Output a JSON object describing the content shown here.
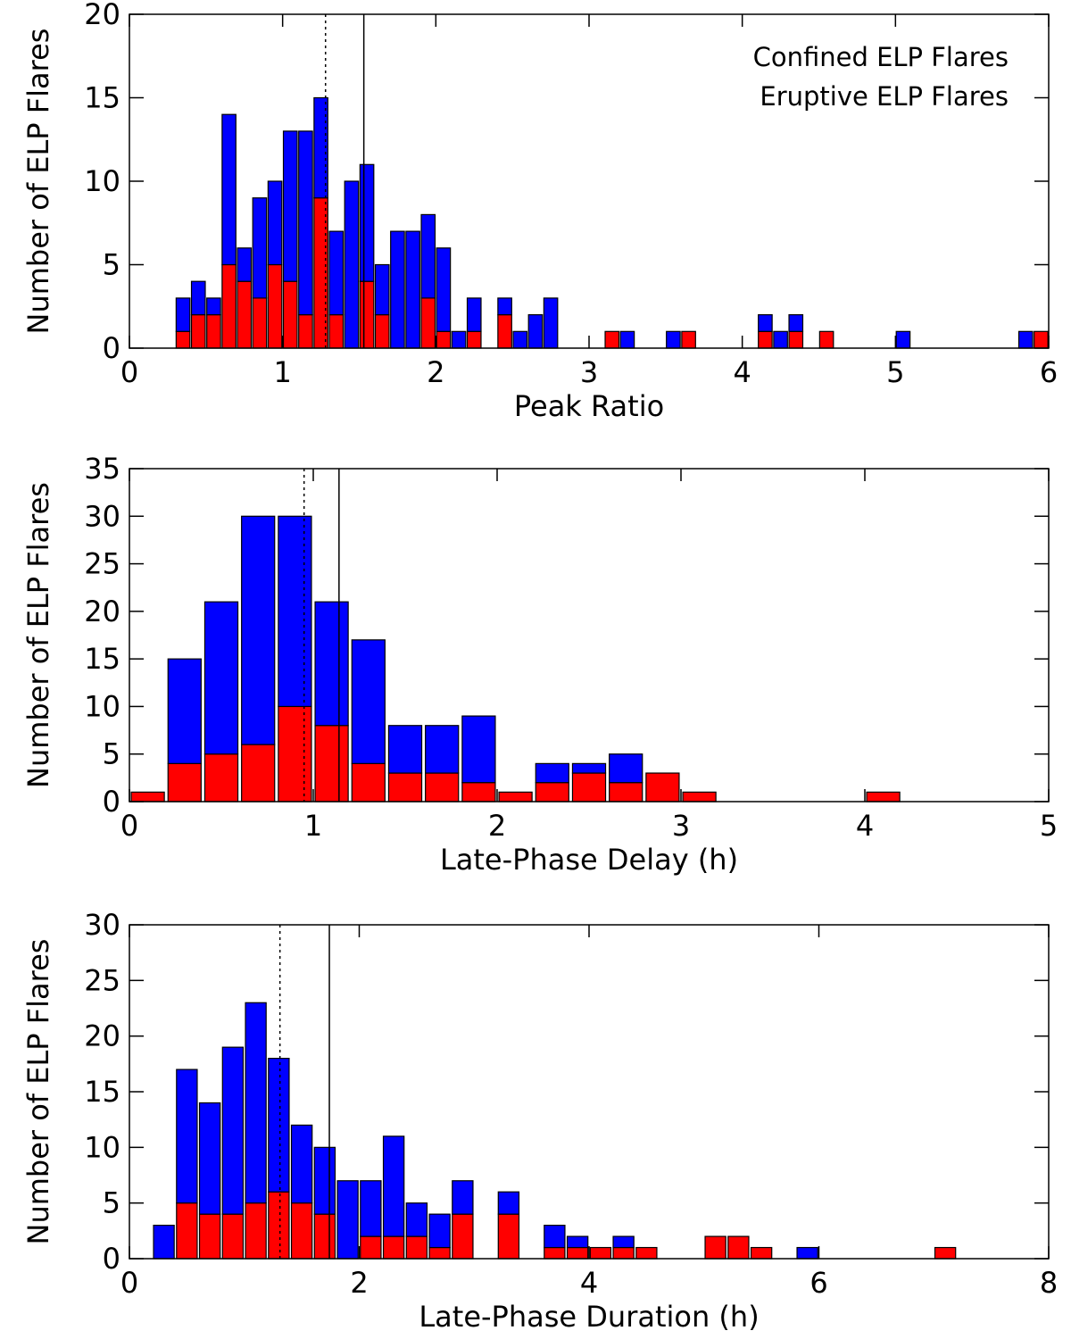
{
  "chart_data": [
    {
      "type": "histogram",
      "xlabel": "Peak Ratio",
      "ylabel": "Number of ELP Flares",
      "bins": [
        0.3,
        0.4,
        0.5,
        0.6,
        0.7,
        0.8,
        0.9,
        1.0,
        1.1,
        1.2,
        1.3,
        1.4,
        1.5,
        1.6,
        1.7,
        1.8,
        1.9,
        2.0,
        2.1,
        2.2,
        2.3,
        2.4,
        2.5,
        2.6,
        2.7,
        2.8,
        2.9,
        3.0,
        3.1,
        3.2,
        3.3,
        3.4,
        3.5,
        3.6,
        3.7,
        3.8,
        3.9,
        4.0,
        4.1,
        4.2,
        4.3,
        4.4,
        4.5,
        4.6,
        4.7,
        4.8,
        4.9,
        5.0,
        5.1,
        5.2,
        5.3,
        5.4,
        5.5,
        5.6,
        5.7,
        5.8,
        5.9,
        6.0
      ],
      "series": [
        {
          "name": "Confined ELP Flares",
          "color": "#0000ff",
          "values": [
            2,
            2,
            1,
            9,
            2,
            6,
            5,
            9,
            11,
            6,
            5,
            10,
            7,
            3,
            7,
            7,
            5,
            5,
            1,
            2,
            0,
            1,
            1,
            2,
            3,
            0,
            0,
            0,
            0,
            1,
            0,
            0,
            1,
            0,
            0,
            0,
            0,
            0,
            1,
            1,
            1,
            0,
            0,
            0,
            0,
            0,
            0,
            1,
            0,
            0,
            0,
            0,
            0,
            0,
            0,
            1,
            0
          ]
        },
        {
          "name": "Eruptive ELP Flares",
          "color": "#ff0000",
          "values": [
            1,
            2,
            2,
            5,
            4,
            3,
            5,
            4,
            2,
            9,
            2,
            0,
            4,
            2,
            0,
            0,
            3,
            1,
            0,
            1,
            0,
            2,
            0,
            0,
            0,
            0,
            0,
            0,
            1,
            0,
            0,
            0,
            0,
            1,
            0,
            0,
            0,
            0,
            1,
            0,
            1,
            0,
            1,
            0,
            0,
            0,
            0,
            0,
            0,
            0,
            0,
            0,
            0,
            0,
            0,
            0,
            1
          ]
        }
      ],
      "xlim": [
        0,
        6
      ],
      "xticks": [
        0,
        1,
        2,
        3,
        4,
        5,
        6
      ],
      "ylim": [
        0,
        20
      ],
      "yticks": [
        0,
        5,
        10,
        15,
        20
      ],
      "vlines": [
        {
          "x": 1.28,
          "style": "dotted"
        },
        {
          "x": 1.53,
          "style": "solid"
        }
      ],
      "legend": "upper right"
    },
    {
      "type": "histogram",
      "xlabel": "Late-Phase Delay (h)",
      "ylabel": "Number of ELP Flares",
      "bins": [
        0,
        0.2,
        0.4,
        0.6,
        0.8,
        1.0,
        1.2,
        1.4,
        1.6,
        1.8,
        2.0,
        2.2,
        2.4,
        2.6,
        2.8,
        3.0,
        3.2,
        3.4,
        3.6,
        3.8,
        4.0,
        4.2
      ],
      "series": [
        {
          "color": "#0000ff",
          "values": [
            0,
            11,
            16,
            24,
            20,
            13,
            13,
            5,
            5,
            7,
            0,
            2,
            1,
            3,
            0,
            0,
            0,
            0,
            0,
            0,
            0
          ]
        },
        {
          "color": "#ff0000",
          "values": [
            1,
            4,
            5,
            6,
            10,
            8,
            4,
            3,
            3,
            2,
            1,
            2,
            3,
            2,
            3,
            1,
            0,
            0,
            0,
            0,
            1
          ]
        }
      ],
      "xlim": [
        0,
        5
      ],
      "xticks": [
        0,
        1,
        2,
        3,
        4,
        5
      ],
      "ylim": [
        0,
        35
      ],
      "yticks": [
        0,
        5,
        10,
        15,
        20,
        25,
        30,
        35
      ],
      "vlines": [
        {
          "x": 0.95,
          "style": "dotted"
        },
        {
          "x": 1.14,
          "style": "solid"
        }
      ]
    },
    {
      "type": "histogram",
      "xlabel": "Late-Phase Duration (h)",
      "ylabel": "Number of ELP Flares",
      "bins": [
        0.2,
        0.4,
        0.6,
        0.8,
        1.0,
        1.2,
        1.4,
        1.6,
        1.8,
        2.0,
        2.2,
        2.4,
        2.6,
        2.8,
        3.0,
        3.2,
        3.4,
        3.6,
        3.8,
        4.0,
        4.2,
        4.4,
        4.6,
        4.8,
        5.0,
        5.2,
        5.4,
        5.6,
        5.8,
        6.0,
        6.2,
        6.4,
        6.6,
        6.8,
        7.0,
        7.2
      ],
      "series": [
        {
          "color": "#0000ff",
          "values": [
            3,
            12,
            10,
            15,
            18,
            12,
            7,
            6,
            7,
            5,
            9,
            3,
            3,
            3,
            0,
            2,
            0,
            2,
            1,
            0,
            1,
            0,
            0,
            0,
            0,
            0,
            0,
            0,
            1,
            0,
            0,
            0,
            0,
            0,
            0
          ]
        },
        {
          "color": "#ff0000",
          "values": [
            0,
            5,
            4,
            4,
            5,
            6,
            5,
            4,
            0,
            2,
            2,
            2,
            1,
            4,
            0,
            4,
            0,
            1,
            1,
            1,
            1,
            1,
            0,
            0,
            2,
            2,
            1,
            0,
            0,
            0,
            0,
            0,
            0,
            0,
            1
          ]
        }
      ],
      "xlim": [
        0,
        8
      ],
      "xticks": [
        0,
        2,
        4,
        6,
        8
      ],
      "ylim": [
        0,
        30
      ],
      "yticks": [
        0,
        5,
        10,
        15,
        20,
        25,
        30
      ],
      "vlines": [
        {
          "x": 1.31,
          "style": "dotted"
        },
        {
          "x": 1.74,
          "style": "solid"
        }
      ]
    }
  ]
}
